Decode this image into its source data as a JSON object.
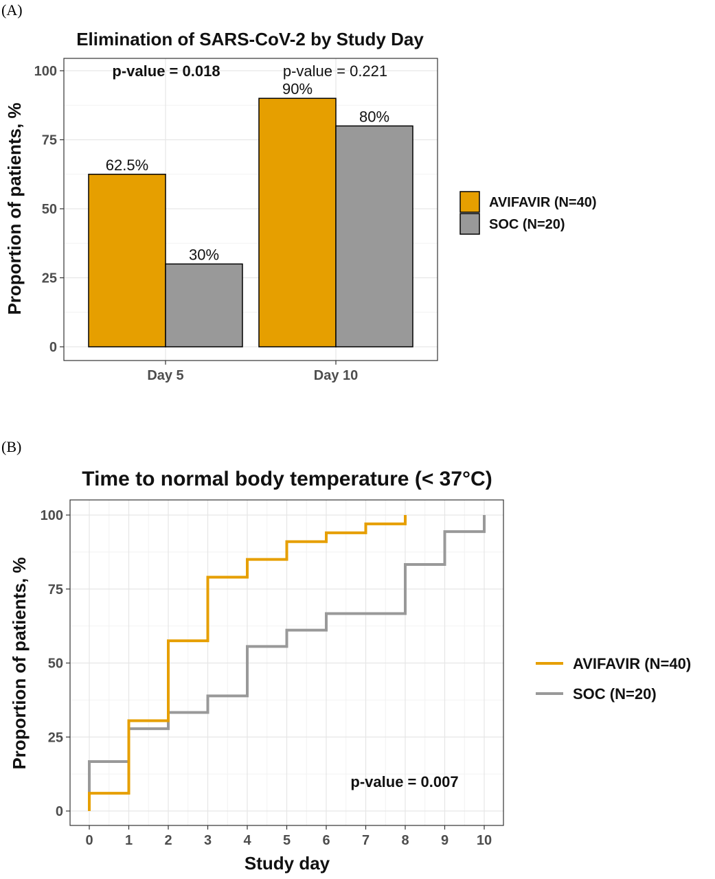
{
  "panel_a": {
    "label": "(A)",
    "p_value_day5": "p-value = 0.018",
    "p_value_day10": "p-value = 0.221"
  },
  "panel_b": {
    "label": "(B)",
    "p_value": "p-value = 0.007"
  },
  "colors": {
    "avifavir": "#E69F00",
    "soc": "#999999",
    "panel_border": "#333333",
    "grid_major": "#e6e6e6",
    "grid_minor": "#f2f2f2"
  },
  "chart_data": [
    {
      "type": "bar",
      "title": "Elimination of SARS-CoV-2 by Study Day",
      "xlabel": "",
      "ylabel": "Proportion of patients, %",
      "categories": [
        "Day 5",
        "Day 10"
      ],
      "series": [
        {
          "name": "AVIFAVIR (N=40)",
          "values": [
            62.5,
            90
          ],
          "labels": [
            "62.5%",
            "90%"
          ]
        },
        {
          "name": "SOC (N=20)",
          "values": [
            30,
            80
          ],
          "labels": [
            "30%",
            "80%"
          ]
        }
      ],
      "ylim": [
        0,
        100
      ],
      "yticks": [
        "0",
        "25",
        "50",
        "75",
        "100"
      ],
      "grid": true,
      "legend_position": "right"
    },
    {
      "type": "line",
      "step": true,
      "title": "Time to normal body temperature (< 37°C)",
      "xlabel": "Study day",
      "ylabel": "Proportion of patients, %",
      "xlim": [
        0,
        10
      ],
      "ylim": [
        0,
        100
      ],
      "xticks": [
        "0",
        "1",
        "2",
        "3",
        "4",
        "5",
        "6",
        "7",
        "8",
        "9",
        "10"
      ],
      "yticks": [
        "0",
        "25",
        "50",
        "75",
        "100"
      ],
      "series": [
        {
          "name": "AVIFAVIR (N=40)",
          "x": [
            0,
            1,
            2,
            3,
            4,
            5,
            6,
            7,
            8
          ],
          "y": [
            6,
            30.5,
            57.5,
            79,
            85,
            91,
            94,
            97,
            100
          ]
        },
        {
          "name": "SOC (N=20)",
          "x": [
            0,
            1,
            2,
            3,
            4,
            5,
            6,
            8,
            9,
            10
          ],
          "y": [
            16.7,
            27.8,
            33.3,
            38.9,
            55.6,
            61.1,
            66.7,
            83.3,
            94.4,
            100
          ]
        }
      ],
      "grid": true,
      "legend_position": "right"
    }
  ]
}
